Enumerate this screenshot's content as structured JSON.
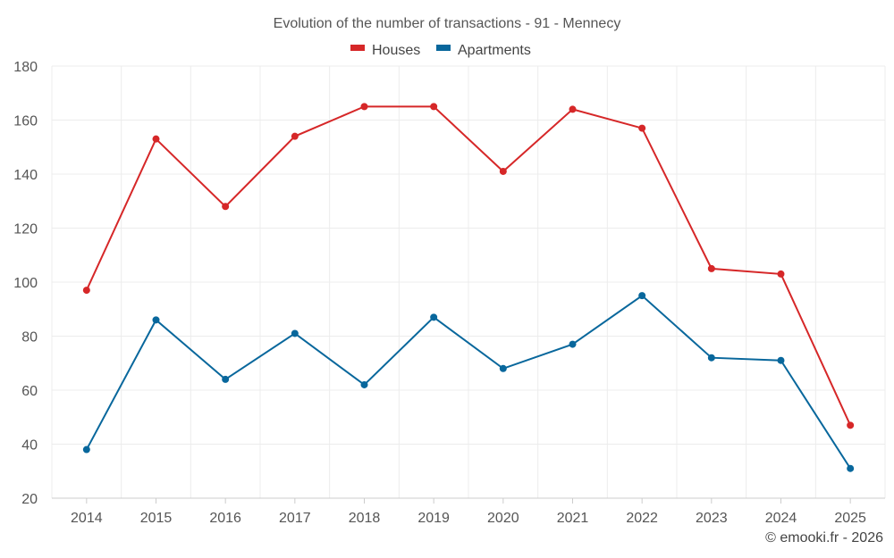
{
  "chart_data": {
    "type": "line",
    "title": "Evolution of the number of transactions - 91 - Mennecy",
    "categories": [
      "2014",
      "2015",
      "2016",
      "2017",
      "2018",
      "2019",
      "2020",
      "2021",
      "2022",
      "2023",
      "2024",
      "2025"
    ],
    "ylim": [
      20,
      180
    ],
    "yticks": [
      20,
      40,
      60,
      80,
      100,
      120,
      140,
      160,
      180
    ],
    "xlabel": "",
    "ylabel": "",
    "grid": true,
    "legend_position": "top-center",
    "series": [
      {
        "name": "Houses",
        "color": "#d62728",
        "values": [
          97,
          153,
          128,
          154,
          165,
          165,
          141,
          164,
          157,
          105,
          103,
          47
        ]
      },
      {
        "name": "Apartments",
        "color": "#08679c",
        "values": [
          38,
          86,
          64,
          81,
          62,
          87,
          68,
          77,
          95,
          72,
          71,
          31
        ]
      }
    ]
  },
  "credit": "© emooki.fr - 2026"
}
